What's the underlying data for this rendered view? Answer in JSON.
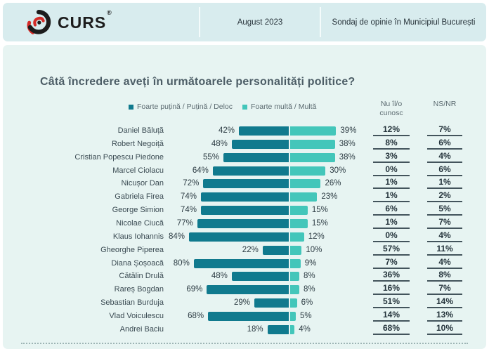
{
  "header": {
    "logo_text": "CURS",
    "logo_reg": "®",
    "date": "August 2023",
    "subtitle": "Sondaj de opinie în Municipiul București"
  },
  "chart_data": {
    "type": "bar",
    "orientation": "horizontal-diverging",
    "title": "Câtă încredere aveți în următoarele personalități politice?",
    "unit": "%",
    "legend": [
      {
        "label": "Foarte puțină / Puțină / Deloc",
        "color": "#107a8e"
      },
      {
        "label": "Foarte multă / Multă",
        "color": "#43c6ba"
      }
    ],
    "columns": {
      "unknown_line1": "Nu îl/o",
      "unknown_line2": "cunosc",
      "nsnr": "NS/NR"
    },
    "rows": [
      {
        "name": "Daniel Băluță",
        "negative": 42,
        "positive": 39,
        "unknown": 12,
        "nsnr": 7
      },
      {
        "name": "Robert Negoiță",
        "negative": 48,
        "positive": 38,
        "unknown": 8,
        "nsnr": 6
      },
      {
        "name": "Cristian Popescu Piedone",
        "negative": 55,
        "positive": 38,
        "unknown": 3,
        "nsnr": 4
      },
      {
        "name": "Marcel Ciolacu",
        "negative": 64,
        "positive": 30,
        "unknown": 0,
        "nsnr": 6
      },
      {
        "name": "Nicușor Dan",
        "negative": 72,
        "positive": 26,
        "unknown": 1,
        "nsnr": 1
      },
      {
        "name": "Gabriela Firea",
        "negative": 74,
        "positive": 23,
        "unknown": 1,
        "nsnr": 2
      },
      {
        "name": "George Simion",
        "negative": 74,
        "positive": 15,
        "unknown": 6,
        "nsnr": 5
      },
      {
        "name": "Nicolae Ciucă",
        "negative": 77,
        "positive": 15,
        "unknown": 1,
        "nsnr": 7
      },
      {
        "name": "Klaus Iohannis",
        "negative": 84,
        "positive": 12,
        "unknown": 0,
        "nsnr": 4
      },
      {
        "name": "Gheorghe Piperea",
        "negative": 22,
        "positive": 10,
        "unknown": 57,
        "nsnr": 11
      },
      {
        "name": "Diana Șoșoacă",
        "negative": 80,
        "positive": 9,
        "unknown": 7,
        "nsnr": 4
      },
      {
        "name": "Cătălin Drulă",
        "negative": 48,
        "positive": 8,
        "unknown": 36,
        "nsnr": 8
      },
      {
        "name": "Rareș Bogdan",
        "negative": 69,
        "positive": 8,
        "unknown": 16,
        "nsnr": 7
      },
      {
        "name": "Sebastian Burduja",
        "negative": 29,
        "positive": 6,
        "unknown": 51,
        "nsnr": 14
      },
      {
        "name": "Vlad Voiculescu",
        "negative": 68,
        "positive": 5,
        "unknown": 14,
        "nsnr": 13
      },
      {
        "name": "Andrei Baciu",
        "negative": 18,
        "positive": 4,
        "unknown": 68,
        "nsnr": 10
      }
    ]
  },
  "colors": {
    "header_card_bg": "#d8ecee",
    "content_card_bg": "#e7f4f2",
    "negative_bar": "#107a8e",
    "positive_bar": "#43c6ba",
    "logo_red": "#d42b27",
    "logo_black": "#1c1c1c"
  }
}
